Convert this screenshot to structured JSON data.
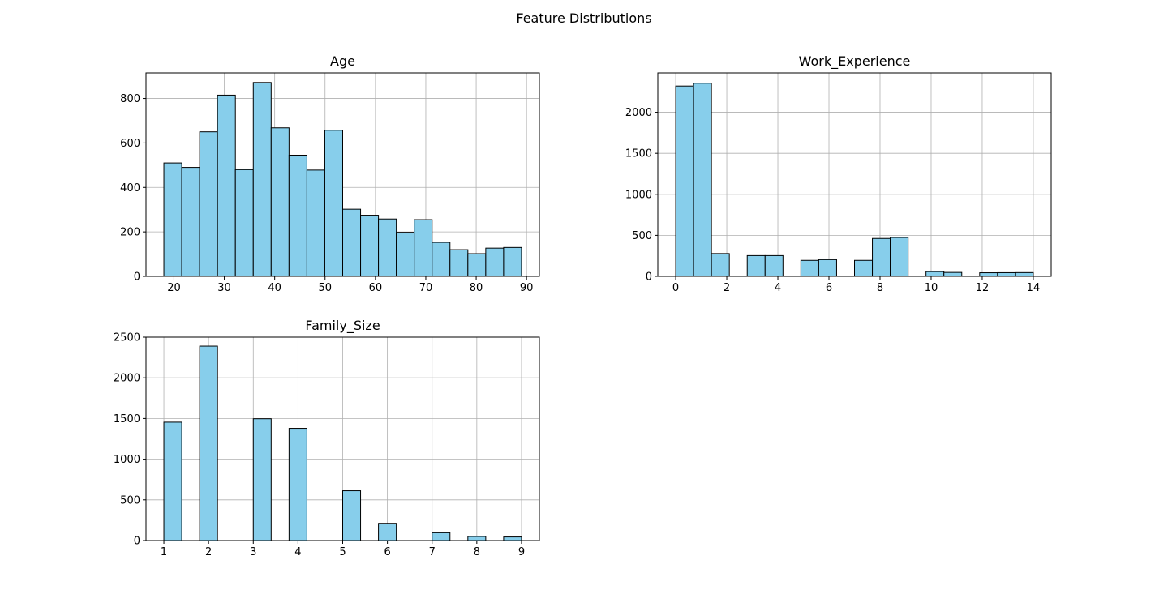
{
  "figure_title": "Feature Distributions",
  "colors": {
    "bar_fill": "#87ceeb",
    "bar_edge": "#000000",
    "grid": "#b0b0b0",
    "axes": "#000000"
  },
  "chart_data": [
    {
      "type": "bar",
      "title": "Age",
      "xlabel": "",
      "ylabel": "",
      "grid": true,
      "xlim": [
        14.45,
        92.55
      ],
      "ylim": [
        0,
        915
      ],
      "xticks": [
        20,
        30,
        40,
        50,
        60,
        70,
        80,
        90
      ],
      "yticks": [
        0,
        200,
        400,
        600,
        800
      ],
      "bins": [
        {
          "x0": 18.0,
          "x1": 21.55,
          "count": 510
        },
        {
          "x0": 21.55,
          "x1": 25.1,
          "count": 490
        },
        {
          "x0": 25.1,
          "x1": 28.65,
          "count": 650
        },
        {
          "x0": 28.65,
          "x1": 32.2,
          "count": 815
        },
        {
          "x0": 32.2,
          "x1": 35.75,
          "count": 480
        },
        {
          "x0": 35.75,
          "x1": 39.3,
          "count": 872
        },
        {
          "x0": 39.3,
          "x1": 42.85,
          "count": 668
        },
        {
          "x0": 42.85,
          "x1": 46.4,
          "count": 545
        },
        {
          "x0": 46.4,
          "x1": 49.95,
          "count": 478
        },
        {
          "x0": 49.95,
          "x1": 53.5,
          "count": 657
        },
        {
          "x0": 53.5,
          "x1": 57.05,
          "count": 302
        },
        {
          "x0": 57.05,
          "x1": 60.6,
          "count": 275
        },
        {
          "x0": 60.6,
          "x1": 64.15,
          "count": 258
        },
        {
          "x0": 64.15,
          "x1": 67.7,
          "count": 198
        },
        {
          "x0": 67.7,
          "x1": 71.25,
          "count": 255
        },
        {
          "x0": 71.25,
          "x1": 74.8,
          "count": 153
        },
        {
          "x0": 74.8,
          "x1": 78.35,
          "count": 120
        },
        {
          "x0": 78.35,
          "x1": 81.9,
          "count": 102
        },
        {
          "x0": 81.9,
          "x1": 85.45,
          "count": 127
        },
        {
          "x0": 85.45,
          "x1": 89.0,
          "count": 130
        }
      ]
    },
    {
      "type": "bar",
      "title": "Work_Experience",
      "xlabel": "",
      "ylabel": "",
      "grid": true,
      "xlim": [
        -0.7,
        14.7
      ],
      "ylim": [
        0,
        2480
      ],
      "xticks": [
        0,
        2,
        4,
        6,
        8,
        10,
        12,
        14
      ],
      "yticks": [
        0,
        500,
        1000,
        1500,
        2000
      ],
      "bins": [
        {
          "x0": 0.0,
          "x1": 0.7,
          "count": 2320
        },
        {
          "x0": 0.7,
          "x1": 1.4,
          "count": 2354
        },
        {
          "x0": 1.4,
          "x1": 2.1,
          "count": 278
        },
        {
          "x0": 2.1,
          "x1": 2.8,
          "count": 0
        },
        {
          "x0": 2.8,
          "x1": 3.5,
          "count": 253
        },
        {
          "x0": 3.5,
          "x1": 4.2,
          "count": 253
        },
        {
          "x0": 4.2,
          "x1": 4.9,
          "count": 0
        },
        {
          "x0": 4.9,
          "x1": 5.6,
          "count": 195
        },
        {
          "x0": 5.6,
          "x1": 6.3,
          "count": 204
        },
        {
          "x0": 6.3,
          "x1": 7.0,
          "count": 0
        },
        {
          "x0": 7.0,
          "x1": 7.7,
          "count": 195
        },
        {
          "x0": 7.7,
          "x1": 8.4,
          "count": 462
        },
        {
          "x0": 8.4,
          "x1": 9.1,
          "count": 474
        },
        {
          "x0": 9.1,
          "x1": 9.8,
          "count": 0
        },
        {
          "x0": 9.8,
          "x1": 10.5,
          "count": 58
        },
        {
          "x0": 10.5,
          "x1": 11.2,
          "count": 48
        },
        {
          "x0": 11.2,
          "x1": 11.9,
          "count": 0
        },
        {
          "x0": 11.9,
          "x1": 12.6,
          "count": 44
        },
        {
          "x0": 12.6,
          "x1": 13.3,
          "count": 45
        },
        {
          "x0": 13.3,
          "x1": 14.0,
          "count": 46
        }
      ]
    },
    {
      "type": "bar",
      "title": "Family_Size",
      "xlabel": "",
      "ylabel": "",
      "grid": true,
      "xlim": [
        0.6,
        9.4
      ],
      "ylim": [
        0,
        2500
      ],
      "xticks": [
        1,
        2,
        3,
        4,
        5,
        6,
        7,
        8,
        9
      ],
      "yticks": [
        0,
        500,
        1000,
        1500,
        2000,
        2500
      ],
      "bins": [
        {
          "x0": 1.0,
          "x1": 1.4,
          "count": 1455
        },
        {
          "x0": 1.4,
          "x1": 1.8,
          "count": 0
        },
        {
          "x0": 1.8,
          "x1": 2.2,
          "count": 2390
        },
        {
          "x0": 2.2,
          "x1": 2.6,
          "count": 0
        },
        {
          "x0": 2.6,
          "x1": 3.0,
          "count": 0
        },
        {
          "x0": 3.0,
          "x1": 3.4,
          "count": 1497
        },
        {
          "x0": 3.4,
          "x1": 3.8,
          "count": 0
        },
        {
          "x0": 3.8,
          "x1": 4.2,
          "count": 1379
        },
        {
          "x0": 4.2,
          "x1": 4.6,
          "count": 0
        },
        {
          "x0": 4.6,
          "x1": 5.0,
          "count": 0
        },
        {
          "x0": 5.0,
          "x1": 5.4,
          "count": 612
        },
        {
          "x0": 5.4,
          "x1": 5.8,
          "count": 0
        },
        {
          "x0": 5.8,
          "x1": 6.2,
          "count": 212
        },
        {
          "x0": 6.2,
          "x1": 6.6,
          "count": 0
        },
        {
          "x0": 6.6,
          "x1": 7.0,
          "count": 0
        },
        {
          "x0": 7.0,
          "x1": 7.4,
          "count": 96
        },
        {
          "x0": 7.4,
          "x1": 7.8,
          "count": 0
        },
        {
          "x0": 7.8,
          "x1": 8.2,
          "count": 50
        },
        {
          "x0": 8.2,
          "x1": 8.6,
          "count": 0
        },
        {
          "x0": 8.6,
          "x1": 9.0,
          "count": 44
        }
      ]
    }
  ]
}
